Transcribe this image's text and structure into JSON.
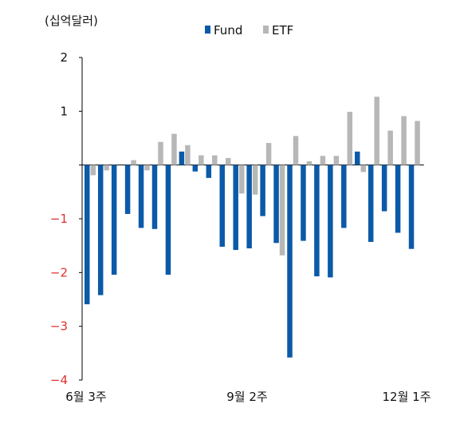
{
  "chart_data": {
    "type": "bar",
    "unit_label": "(십억달러)",
    "legend": [
      {
        "name": "Fund",
        "color": "#0b5aa8"
      },
      {
        "name": "ETF",
        "color": "#b7b7b7"
      }
    ],
    "legend_position": "top-center",
    "ylim": [
      -4,
      2
    ],
    "yticks": [
      {
        "value": 2,
        "label": "2"
      },
      {
        "value": 1,
        "label": "1"
      },
      {
        "value": -1,
        "label": "−1"
      },
      {
        "value": -2,
        "label": "−2"
      },
      {
        "value": -3,
        "label": "−3"
      },
      {
        "value": -4,
        "label": "−4"
      }
    ],
    "negative_tick_color": "#e03030",
    "xtick_labels": [
      {
        "index": 0,
        "label": "6월 3주"
      },
      {
        "index": 12,
        "label": "9월 2주"
      },
      {
        "index": 24,
        "label": "12월 1주"
      }
    ],
    "grid": false,
    "series": [
      {
        "name": "Fund",
        "values": [
          -2.59,
          -2.42,
          -2.04,
          -0.91,
          -1.17,
          -1.19,
          -2.04,
          0.25,
          -0.12,
          -0.24,
          -1.52,
          -1.58,
          -1.55,
          -0.95,
          -1.45,
          -3.58,
          -1.41,
          -2.07,
          -2.09,
          -1.17,
          0.25,
          -1.43,
          -0.86,
          -1.26,
          -1.56
        ]
      },
      {
        "name": "ETF",
        "values": [
          -0.19,
          -0.1,
          0.0,
          0.09,
          -0.1,
          0.43,
          0.58,
          0.37,
          0.18,
          0.18,
          0.13,
          -0.53,
          -0.55,
          0.41,
          -1.68,
          0.54,
          0.07,
          0.17,
          0.17,
          0.99,
          -0.13,
          1.27,
          0.64,
          0.91,
          0.82
        ]
      }
    ]
  }
}
